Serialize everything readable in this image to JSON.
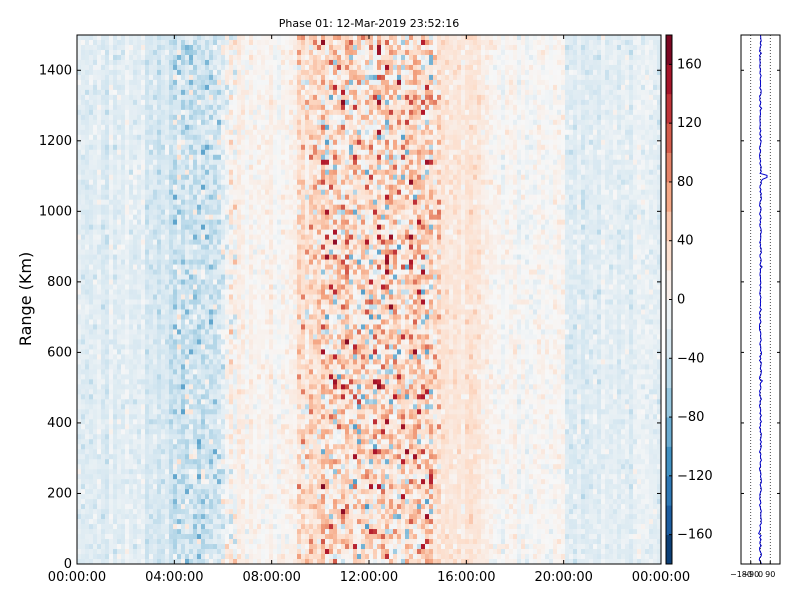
{
  "chart_data": {
    "type": "heatmap",
    "title": "Phase 01: 12-Mar-2019 23:52:16",
    "ylabel": "Range (Km)",
    "xlabel": "",
    "x_ticks": [
      "00:00:00",
      "04:00:00",
      "08:00:00",
      "12:00:00",
      "16:00:00",
      "20:00:00",
      "00:00:00"
    ],
    "x_range_hours": [
      0,
      24
    ],
    "y_ticks": [
      "0",
      "200",
      "400",
      "600",
      "800",
      "1000",
      "1200",
      "1400"
    ],
    "ylim": [
      0,
      1500
    ],
    "colorbar": {
      "colormap": "RdBu_r",
      "range": [
        -180,
        180
      ],
      "ticks": [
        "160",
        "120",
        "80",
        "40",
        "0",
        "−40",
        "−80",
        "−120",
        "−160"
      ],
      "levels": 18
    },
    "profile_panel": {
      "type": "line",
      "x_ticks": [
        "−180",
        "−90",
        "0",
        "90"
      ],
      "x_range": [
        -180,
        180
      ],
      "y_range": [
        0,
        1500
      ],
      "color": "#0000cc",
      "spike_range_km": 1100,
      "gridlines": "dotted"
    },
    "time_profile_description": "phase mostly near 0 (light blue) early and late in the day, positive (red) from about 09:00 to 15:00 with strong scattered values near 11:00-14:00"
  }
}
